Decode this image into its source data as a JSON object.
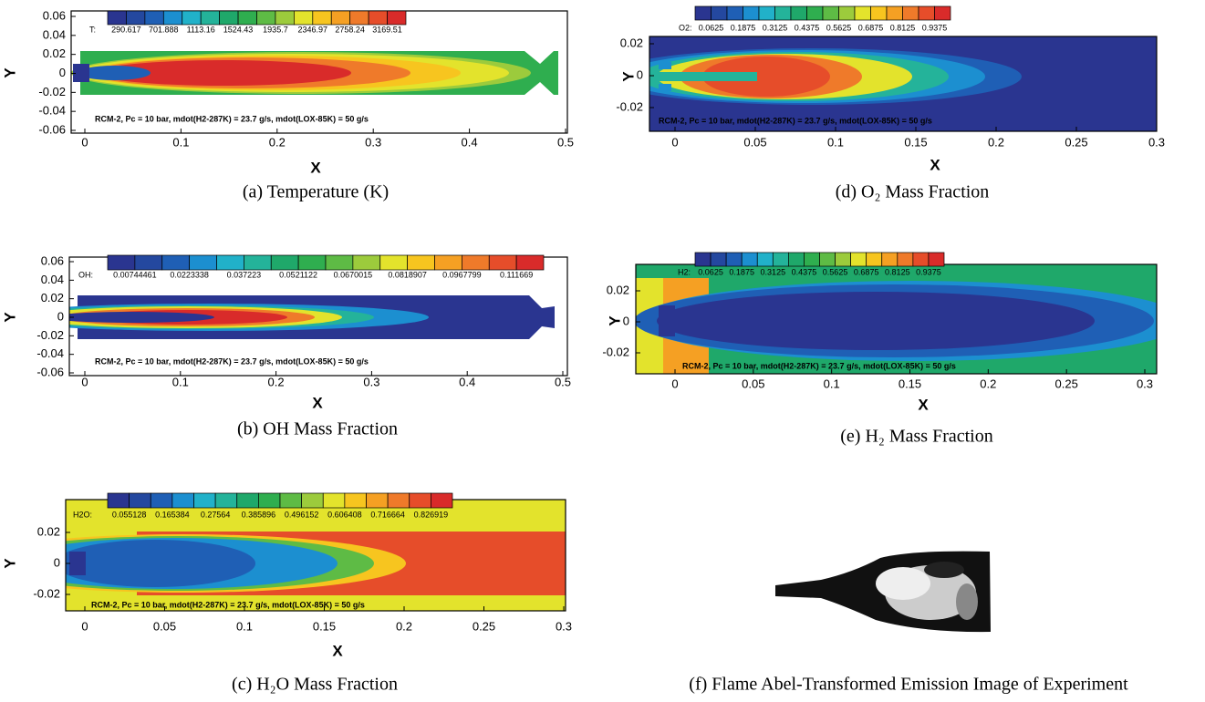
{
  "panels": [
    {
      "caption": "(a) Temperature (K)",
      "colorbar": {
        "label": "T:",
        "ticks": [
          "290.617",
          "701.888",
          "1113.16",
          "1524.43",
          "1935.7",
          "2346.97",
          "2758.24",
          "3169.51"
        ]
      },
      "note": "RCM-2, Pc = 10 bar, mdot(H2-287K) = 23.7 g/s, mdot(LOX-85K) = 50 g/s",
      "x_label": "X",
      "y_label": "Y",
      "xticks": [
        "0",
        "0.1",
        "0.2",
        "0.3",
        "0.4",
        "0.5"
      ],
      "yticks": [
        "0.06",
        "0.04",
        "0.02",
        "0",
        "-0.02",
        "-0.04",
        "-0.06"
      ]
    },
    {
      "caption": "(b) OH Mass Fraction",
      "colorbar": {
        "label": "OH:",
        "ticks": [
          "0.00744461",
          "0.0223338",
          "0.037223",
          "0.0521122",
          "0.0670015",
          "0.0818907",
          "0.0967799",
          "0.111669"
        ]
      },
      "note": "RCM-2, Pc = 10 bar, mdot(H2-287K) = 23.7 g/s, mdot(LOX-85K) = 50 g/s",
      "x_label": "X",
      "y_label": "Y",
      "xticks": [
        "0",
        "0.1",
        "0.2",
        "0.3",
        "0.4",
        "0.5"
      ],
      "yticks": [
        "0.06",
        "0.04",
        "0.02",
        "0",
        "-0.02",
        "-0.04",
        "-0.06"
      ]
    },
    {
      "caption": "(c) H₂O Mass Fraction",
      "colorbar": {
        "label": "H2O:",
        "ticks": [
          "0.055128",
          "0.165384",
          "0.27564",
          "0.385896",
          "0.496152",
          "0.606408",
          "0.716664",
          "0.826919"
        ]
      },
      "note": "RCM-2, Pc = 10 bar, mdot(H2-287K) = 23.7 g/s, mdot(LOX-85K) = 50 g/s",
      "x_label": "X",
      "y_label": "Y",
      "xticks": [
        "0",
        "0.05",
        "0.1",
        "0.15",
        "0.2",
        "0.25",
        "0.3"
      ],
      "yticks": [
        "0.02",
        "0",
        "-0.02"
      ]
    },
    {
      "caption": "(d) O₂ Mass Fraction",
      "colorbar": {
        "label": "O2:",
        "ticks": [
          "0.0625",
          "0.1875",
          "0.3125",
          "0.4375",
          "0.5625",
          "0.6875",
          "0.8125",
          "0.9375"
        ]
      },
      "note": "RCM-2, Pc = 10 bar, mdot(H2-287K) = 23.7 g/s, mdot(LOX-85K) = 50 g/s",
      "x_label": "X",
      "y_label": "Y",
      "xticks": [
        "0",
        "0.05",
        "0.1",
        "0.15",
        "0.2",
        "0.25",
        "0.3"
      ],
      "yticks": [
        "0.02",
        "0",
        "-0.02"
      ]
    },
    {
      "caption": "(e) H₂ Mass Fraction",
      "colorbar": {
        "label": "H2:",
        "ticks": [
          "0.0625",
          "0.1875",
          "0.3125",
          "0.4375",
          "0.5625",
          "0.6875",
          "0.8125",
          "0.9375"
        ]
      },
      "note": "RCM-2, Pc = 10 bar, mdot(H2-287K) = 23.7 g/s, mdot(LOX-85K) = 50 g/s",
      "x_label": "X",
      "y_label": "Y",
      "xticks": [
        "0",
        "0.05",
        "0.1",
        "0.15",
        "0.2",
        "0.25",
        "0.3"
      ],
      "yticks": [
        "0.02",
        "0",
        "-0.02"
      ]
    },
    {
      "caption": "(f) Flame Abel-Transformed Emission Image of Experiment"
    }
  ]
}
